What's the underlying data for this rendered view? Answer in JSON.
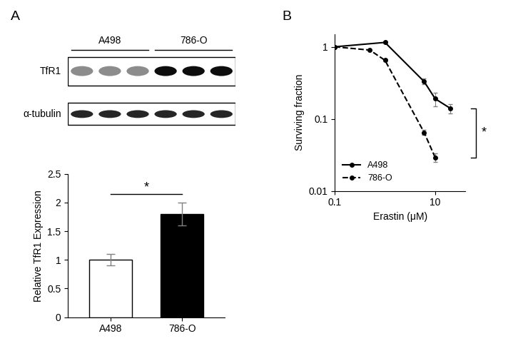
{
  "panels": [
    "A",
    "B"
  ],
  "blot": {
    "lanes": [
      {
        "label": "A498",
        "count": 3
      },
      {
        "label": "786-O",
        "count": 3
      }
    ],
    "rows": [
      "TfR1",
      "α-tubulin"
    ]
  },
  "chart_data": [
    {
      "type": "bar",
      "categories": [
        "A498",
        "786-O"
      ],
      "values": [
        1.0,
        1.8
      ],
      "errors": [
        0.1,
        0.2
      ],
      "colors": [
        "#ffffff",
        "#000000"
      ],
      "y_label": "Relative TfR1 Expression",
      "ylim": [
        0,
        2.5
      ],
      "yticks": [
        0,
        0.5,
        1,
        1.5,
        2,
        2.5
      ],
      "annotations": [
        {
          "text": "*",
          "between": [
            0,
            1
          ]
        }
      ]
    },
    {
      "type": "line",
      "log": true,
      "x_label": "Erastin (μM)",
      "y_label": "Surviving fraction",
      "xlim": [
        0.1,
        40
      ],
      "xticks": [
        0.1,
        10
      ],
      "ylim": [
        0.01,
        1.5
      ],
      "yticks": [
        0.01,
        0.1,
        1
      ],
      "legend": "lower left",
      "series": [
        {
          "name": "A498",
          "color": "#000000",
          "line_style": "solid",
          "marker": "o",
          "x": [
            0.1,
            1,
            6,
            10,
            20
          ],
          "values": [
            1.0,
            1.15,
            0.33,
            0.19,
            0.14
          ],
          "errors": [
            0.02,
            0.03,
            0.03,
            0.04,
            0.02
          ]
        },
        {
          "name": "786-O",
          "color": "#000000",
          "line_style": "dashed",
          "marker": "o",
          "x": [
            0.1,
            0.5,
            1,
            6,
            10
          ],
          "values": [
            1.0,
            0.9,
            0.65,
            0.065,
            0.029
          ],
          "errors": [
            0.02,
            0.02,
            0.02,
            0.005,
            0.004
          ]
        }
      ],
      "annotations": [
        {
          "text": "*",
          "between": [
            "A498",
            "786-O"
          ]
        }
      ]
    }
  ]
}
